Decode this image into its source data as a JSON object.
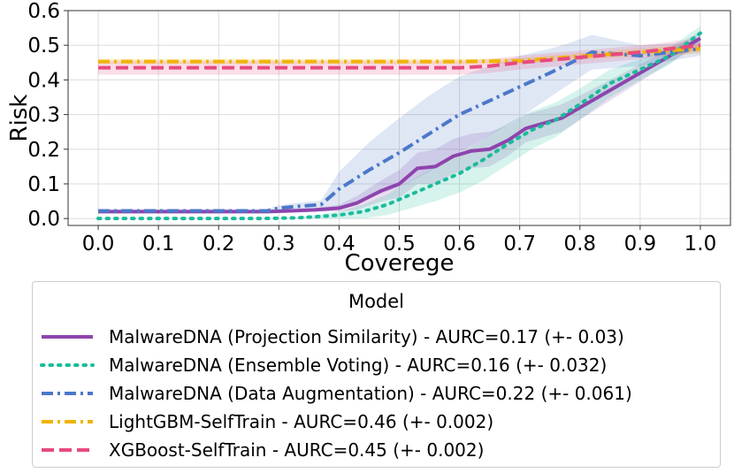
{
  "chart_data": {
    "type": "line",
    "xlabel": "Coverege",
    "ylabel": "Risk",
    "xlim": [
      -0.05,
      1.05
    ],
    "ylim": [
      -0.02,
      0.6
    ],
    "xticks": [
      "0.0",
      "0.1",
      "0.2",
      "0.3",
      "0.4",
      "0.5",
      "0.6",
      "0.7",
      "0.8",
      "0.9",
      "1.0"
    ],
    "yticks": [
      "0.0",
      "0.1",
      "0.2",
      "0.3",
      "0.4",
      "0.5",
      "0.6"
    ],
    "grid": true,
    "legend": {
      "title": "Model",
      "placement": "bottom"
    },
    "series": [
      {
        "name": "MalwareDNA (Projection Similarity) - AURC=0.17 (+- 0.03)",
        "color": "#8e44ad",
        "style": "solid",
        "x": [
          0.0,
          0.1,
          0.2,
          0.28,
          0.32,
          0.36,
          0.4,
          0.43,
          0.47,
          0.5,
          0.53,
          0.56,
          0.59,
          0.62,
          0.65,
          0.68,
          0.71,
          0.74,
          0.77,
          0.8,
          0.85,
          0.9,
          0.95,
          1.0
        ],
        "y": [
          0.02,
          0.02,
          0.02,
          0.02,
          0.022,
          0.025,
          0.03,
          0.045,
          0.08,
          0.1,
          0.145,
          0.15,
          0.18,
          0.195,
          0.2,
          0.225,
          0.26,
          0.275,
          0.29,
          0.32,
          0.37,
          0.42,
          0.47,
          0.52
        ],
        "band": [
          0.0,
          0.0,
          0.0,
          0.0,
          0.0,
          0.005,
          0.01,
          0.02,
          0.03,
          0.04,
          0.045,
          0.05,
          0.05,
          0.05,
          0.05,
          0.045,
          0.04,
          0.04,
          0.04,
          0.035,
          0.03,
          0.025,
          0.02,
          0.02
        ]
      },
      {
        "name": "MalwareDNA (Ensemble Voting) - AURC=0.16 (+- 0.032)",
        "color": "#1abc9c",
        "style": "dotted",
        "x": [
          0.0,
          0.1,
          0.2,
          0.27,
          0.33,
          0.36,
          0.4,
          0.44,
          0.48,
          0.52,
          0.56,
          0.6,
          0.64,
          0.68,
          0.72,
          0.76,
          0.8,
          0.85,
          0.9,
          0.95,
          1.0
        ],
        "y": [
          0.0,
          0.0,
          0.0,
          0.0,
          0.002,
          0.005,
          0.01,
          0.02,
          0.04,
          0.07,
          0.1,
          0.13,
          0.17,
          0.215,
          0.255,
          0.285,
          0.33,
          0.39,
          0.43,
          0.47,
          0.535
        ],
        "band": [
          0.0,
          0.0,
          0.0,
          0.0,
          0.002,
          0.005,
          0.01,
          0.02,
          0.03,
          0.04,
          0.05,
          0.055,
          0.06,
          0.06,
          0.055,
          0.05,
          0.045,
          0.04,
          0.03,
          0.025,
          0.02
        ]
      },
      {
        "name": "MalwareDNA (Data Augmentation) - AURC=0.22 (+- 0.061)",
        "color": "#4c78c9",
        "style": "dashdot",
        "x": [
          0.0,
          0.1,
          0.2,
          0.28,
          0.3,
          0.33,
          0.37,
          0.4,
          0.45,
          0.5,
          0.55,
          0.6,
          0.65,
          0.7,
          0.75,
          0.78,
          0.82,
          0.86,
          0.9,
          0.95,
          1.0
        ],
        "y": [
          0.022,
          0.022,
          0.022,
          0.022,
          0.03,
          0.035,
          0.04,
          0.085,
          0.14,
          0.19,
          0.245,
          0.3,
          0.34,
          0.38,
          0.42,
          0.445,
          0.48,
          0.475,
          0.47,
          0.48,
          0.49
        ],
        "band": [
          0.005,
          0.005,
          0.005,
          0.005,
          0.008,
          0.01,
          0.012,
          0.05,
          0.08,
          0.1,
          0.11,
          0.11,
          0.1,
          0.09,
          0.07,
          0.06,
          0.05,
          0.04,
          0.03,
          0.025,
          0.02
        ]
      },
      {
        "name": "LightGBM-SelfTrain - AURC=0.46 (+- 0.002)",
        "color": "#f0b400",
        "style": "dashdot",
        "x": [
          0.0,
          0.1,
          0.2,
          0.3,
          0.4,
          0.5,
          0.6,
          0.7,
          0.8,
          0.9,
          1.0
        ],
        "y": [
          0.453,
          0.453,
          0.453,
          0.453,
          0.453,
          0.453,
          0.453,
          0.455,
          0.468,
          0.48,
          0.49
        ],
        "band": [
          0.008,
          0.008,
          0.008,
          0.008,
          0.008,
          0.008,
          0.008,
          0.008,
          0.01,
          0.012,
          0.015
        ]
      },
      {
        "name": "XGBoost-SelfTrain - AURC=0.45 (+- 0.002)",
        "color": "#e84a7f",
        "style": "dashed",
        "x": [
          0.0,
          0.1,
          0.2,
          0.3,
          0.4,
          0.5,
          0.6,
          0.65,
          0.7,
          0.8,
          0.9,
          1.0
        ],
        "y": [
          0.435,
          0.435,
          0.435,
          0.435,
          0.435,
          0.435,
          0.435,
          0.44,
          0.45,
          0.465,
          0.48,
          0.5
        ],
        "band": [
          0.02,
          0.02,
          0.02,
          0.02,
          0.02,
          0.02,
          0.02,
          0.02,
          0.02,
          0.02,
          0.02,
          0.02
        ]
      }
    ]
  }
}
